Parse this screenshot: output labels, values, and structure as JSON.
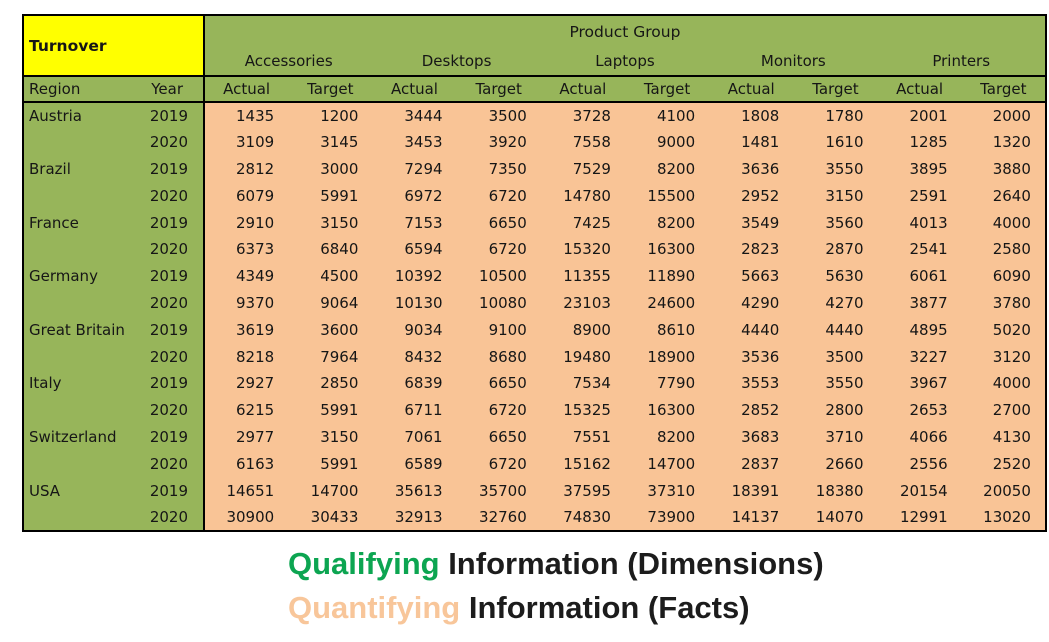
{
  "table": {
    "corner_label": "Turnover",
    "product_group_label": "Product Group",
    "groups": [
      "Accessories",
      "Desktops",
      "Laptops",
      "Monitors",
      "Printers"
    ],
    "region_header": "Region",
    "year_header": "Year",
    "actual_label": "Actual",
    "target_label": "Target",
    "rows": [
      {
        "region": "Austria",
        "year": "2019",
        "values": [
          1435,
          1200,
          3444,
          3500,
          3728,
          4100,
          1808,
          1780,
          2001,
          2000
        ]
      },
      {
        "region": "",
        "year": "2020",
        "values": [
          3109,
          3145,
          3453,
          3920,
          7558,
          9000,
          1481,
          1610,
          1285,
          1320
        ]
      },
      {
        "region": "Brazil",
        "year": "2019",
        "values": [
          2812,
          3000,
          7294,
          7350,
          7529,
          8200,
          3636,
          3550,
          3895,
          3880
        ]
      },
      {
        "region": "",
        "year": "2020",
        "values": [
          6079,
          5991,
          6972,
          6720,
          14780,
          15500,
          2952,
          3150,
          2591,
          2640
        ]
      },
      {
        "region": "France",
        "year": "2019",
        "values": [
          2910,
          3150,
          7153,
          6650,
          7425,
          8200,
          3549,
          3560,
          4013,
          4000
        ]
      },
      {
        "region": "",
        "year": "2020",
        "values": [
          6373,
          6840,
          6594,
          6720,
          15320,
          16300,
          2823,
          2870,
          2541,
          2580
        ]
      },
      {
        "region": "Germany",
        "year": "2019",
        "values": [
          4349,
          4500,
          10392,
          10500,
          11355,
          11890,
          5663,
          5630,
          6061,
          6090
        ]
      },
      {
        "region": "",
        "year": "2020",
        "values": [
          9370,
          9064,
          10130,
          10080,
          23103,
          24600,
          4290,
          4270,
          3877,
          3780
        ]
      },
      {
        "region": "Great Britain",
        "year": "2019",
        "values": [
          3619,
          3600,
          9034,
          9100,
          8900,
          8610,
          4440,
          4440,
          4895,
          5020
        ]
      },
      {
        "region": "",
        "year": "2020",
        "values": [
          8218,
          7964,
          8432,
          8680,
          19480,
          18900,
          3536,
          3500,
          3227,
          3120
        ]
      },
      {
        "region": "Italy",
        "year": "2019",
        "values": [
          2927,
          2850,
          6839,
          6650,
          7534,
          7790,
          3553,
          3550,
          3967,
          4000
        ]
      },
      {
        "region": "",
        "year": "2020",
        "values": [
          6215,
          5991,
          6711,
          6720,
          15325,
          16300,
          2852,
          2800,
          2653,
          2700
        ]
      },
      {
        "region": "Switzerland",
        "year": "2019",
        "values": [
          2977,
          3150,
          7061,
          6650,
          7551,
          8200,
          3683,
          3710,
          4066,
          4130
        ]
      },
      {
        "region": "",
        "year": "2020",
        "values": [
          6163,
          5991,
          6589,
          6720,
          15162,
          14700,
          2837,
          2660,
          2556,
          2520
        ]
      },
      {
        "region": "USA",
        "year": "2019",
        "values": [
          14651,
          14700,
          35613,
          35700,
          37595,
          37310,
          18391,
          18380,
          20154,
          20050
        ]
      },
      {
        "region": "",
        "year": "2020",
        "values": [
          30900,
          30433,
          32913,
          32760,
          74830,
          73900,
          14137,
          14070,
          12991,
          13020
        ]
      }
    ]
  },
  "captions": [
    {
      "highlight": "Qualifying",
      "rest": " Information (Dimensions)",
      "color": "#0ca551"
    },
    {
      "highlight": "Quantifying",
      "rest": " Information (Facts)",
      "color": "#f8c69a"
    }
  ],
  "colors": {
    "header_green": "#97b55a",
    "fact_orange": "#f9c496",
    "corner_yellow": "#ffff00",
    "caption_green": "#0ca551",
    "caption_peach": "#f8c69a",
    "border": "#000000"
  }
}
